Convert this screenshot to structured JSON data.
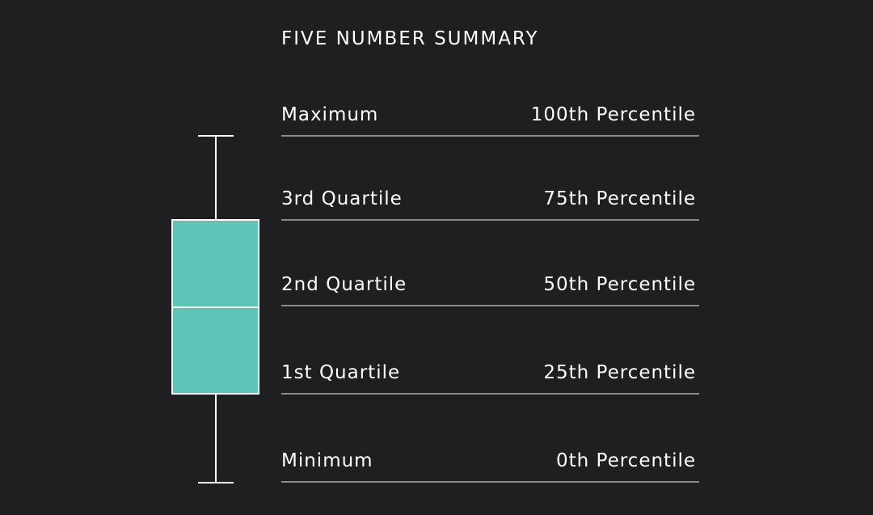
{
  "title": "FIVE NUMBER SUMMARY",
  "rows": [
    {
      "label": "Maximum",
      "percentile": "100th Percentile"
    },
    {
      "label": "3rd Quartile",
      "percentile": "75th Percentile"
    },
    {
      "label": "2nd Quartile",
      "percentile": "50th Percentile"
    },
    {
      "label": "1st Quartile",
      "percentile": "25th Percentile"
    },
    {
      "label": "Minimum",
      "percentile": "0th Percentile"
    }
  ]
}
